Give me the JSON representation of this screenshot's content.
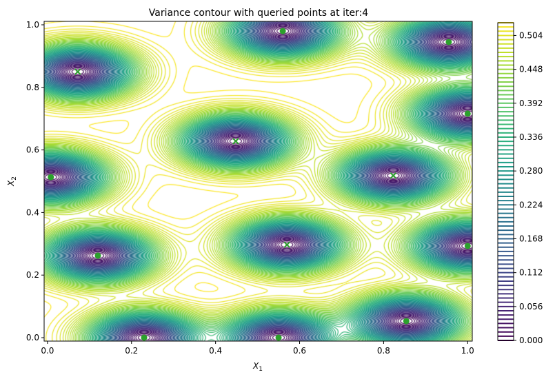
{
  "chart_data": {
    "type": "contour",
    "title": "Variance contour with queried points at iter:4",
    "xlabel": "X_1",
    "ylabel": "X_2",
    "xlim": [
      -0.008,
      1.011
    ],
    "ylim": [
      -0.011,
      1.011
    ],
    "xticks": [
      "0.0",
      "0.2",
      "0.4",
      "0.6",
      "0.8",
      "1.0"
    ],
    "yticks": [
      "0.0",
      "0.2",
      "0.4",
      "0.6",
      "0.8",
      "1.0"
    ],
    "colormap": "viridis",
    "level_step": 0.007,
    "level_range": [
      0.0,
      0.525
    ],
    "colorbar_ticks": [
      "0.000",
      "0.056",
      "0.112",
      "0.168",
      "0.224",
      "0.280",
      "0.336",
      "0.392",
      "0.448",
      "0.504"
    ],
    "marker_color": "#2ca02c",
    "points_dot": [
      {
        "x": 0.56,
        "y": 0.98
      },
      {
        "x": 0.955,
        "y": 0.945
      },
      {
        "x": 0.008,
        "y": 0.513
      },
      {
        "x": 1.0,
        "y": 0.716
      },
      {
        "x": 0.12,
        "y": 0.262
      },
      {
        "x": 1.0,
        "y": 0.293
      },
      {
        "x": 0.23,
        "y": 0.0
      },
      {
        "x": 0.55,
        "y": 0.0
      },
      {
        "x": 0.854,
        "y": 0.053
      }
    ],
    "points_x": [
      {
        "x": 0.072,
        "y": 0.85
      },
      {
        "x": 0.448,
        "y": 0.628
      },
      {
        "x": 0.57,
        "y": 0.297
      },
      {
        "x": 0.823,
        "y": 0.518
      }
    ]
  }
}
